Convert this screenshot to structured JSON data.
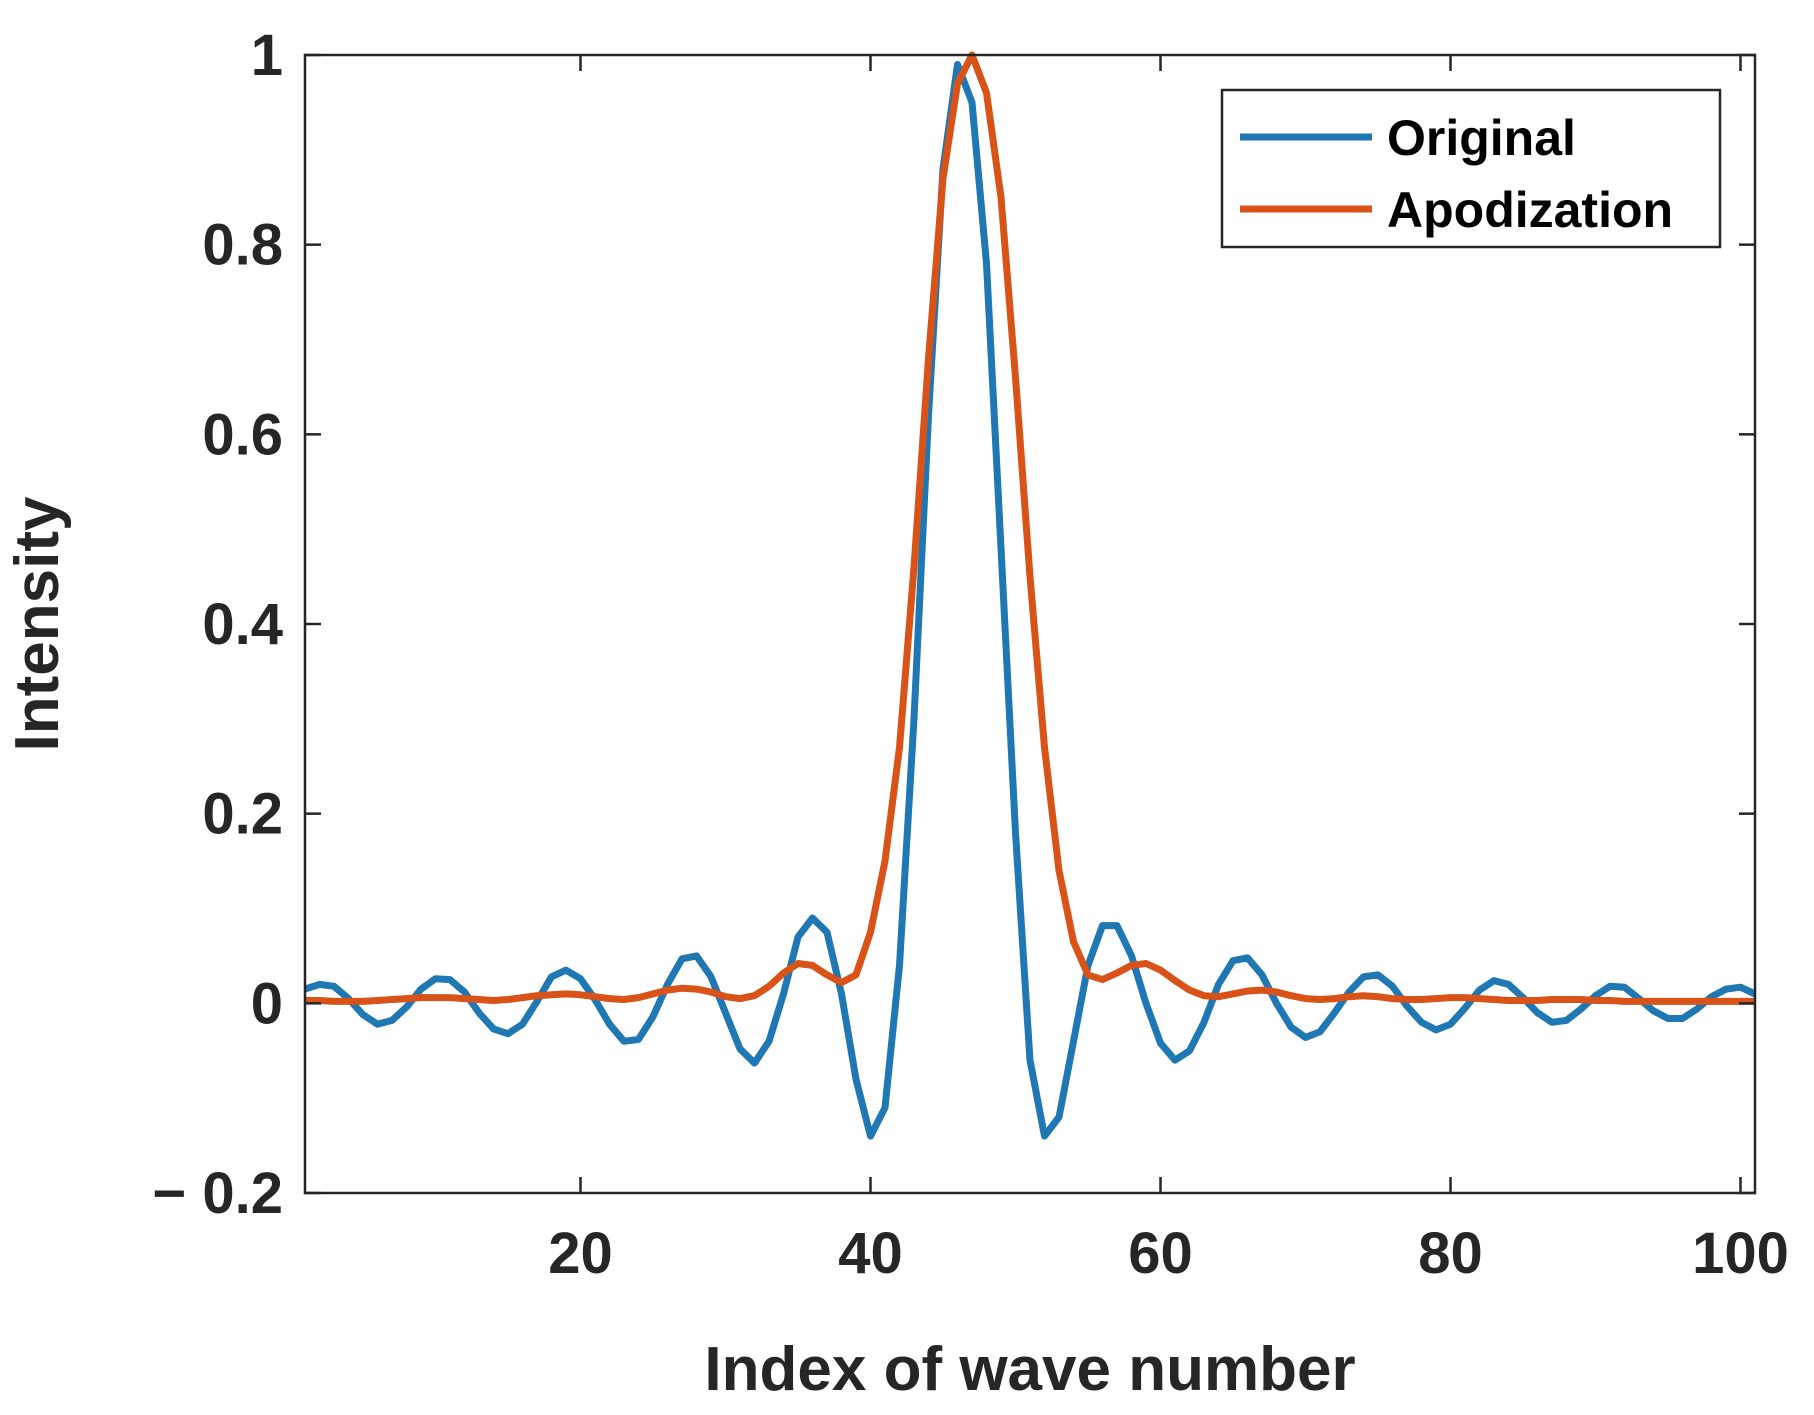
{
  "chart_data": {
    "type": "line",
    "title": "",
    "xlabel": "Index of wave number",
    "ylabel": "Intensity",
    "xlim": [
      1,
      101
    ],
    "ylim": [
      -0.2,
      1
    ],
    "xticks": [
      20,
      40,
      60,
      80,
      100
    ],
    "xtick_labels": [
      "20",
      "40",
      "60",
      "80",
      "100"
    ],
    "yticks": [
      -0.2,
      0,
      0.2,
      0.4,
      0.6,
      0.8,
      1
    ],
    "ytick_labels": [
      "− 0.2",
      "0",
      "0.2",
      "0.4",
      "0.6",
      "0.8",
      "1"
    ],
    "grid": false,
    "legend_position": "top-right",
    "x": [
      1,
      2,
      3,
      4,
      5,
      6,
      7,
      8,
      9,
      10,
      11,
      12,
      13,
      14,
      15,
      16,
      17,
      18,
      19,
      20,
      21,
      22,
      23,
      24,
      25,
      26,
      27,
      28,
      29,
      30,
      31,
      32,
      33,
      34,
      35,
      36,
      37,
      38,
      39,
      40,
      41,
      42,
      43,
      44,
      45,
      46,
      47,
      48,
      49,
      50,
      51,
      52,
      53,
      54,
      55,
      56,
      57,
      58,
      59,
      60,
      61,
      62,
      63,
      64,
      65,
      66,
      67,
      68,
      69,
      70,
      71,
      72,
      73,
      74,
      75,
      76,
      77,
      78,
      79,
      80,
      81,
      82,
      83,
      84,
      85,
      86,
      87,
      88,
      89,
      90,
      91,
      92,
      93,
      94,
      95,
      96,
      97,
      98,
      99,
      100,
      101
    ],
    "series": [
      {
        "name": "Original",
        "color": "#1f77b4",
        "values": [
          0.015,
          0.02,
          0.018,
          0.005,
          -0.012,
          -0.022,
          -0.018,
          -0.004,
          0.015,
          0.026,
          0.025,
          0.012,
          -0.01,
          -0.027,
          -0.032,
          -0.022,
          0.002,
          0.028,
          0.035,
          0.026,
          0.004,
          -0.022,
          -0.04,
          -0.038,
          -0.014,
          0.02,
          0.047,
          0.05,
          0.028,
          -0.01,
          -0.048,
          -0.063,
          -0.04,
          0.01,
          0.07,
          0.09,
          0.075,
          0.01,
          -0.08,
          -0.14,
          -0.11,
          0.04,
          0.3,
          0.62,
          0.88,
          0.99,
          0.95,
          0.78,
          0.48,
          0.18,
          -0.06,
          -0.14,
          -0.12,
          -0.04,
          0.04,
          0.082,
          0.082,
          0.05,
          0.0,
          -0.042,
          -0.06,
          -0.05,
          -0.02,
          0.02,
          0.045,
          0.048,
          0.03,
          0.0,
          -0.025,
          -0.036,
          -0.03,
          -0.01,
          0.012,
          0.028,
          0.03,
          0.018,
          -0.003,
          -0.02,
          -0.028,
          -0.022,
          -0.005,
          0.014,
          0.024,
          0.02,
          0.006,
          -0.01,
          -0.02,
          -0.018,
          -0.006,
          0.008,
          0.018,
          0.017,
          0.005,
          -0.008,
          -0.016,
          -0.016,
          -0.006,
          0.007,
          0.015,
          0.017,
          0.01
        ]
      },
      {
        "name": "Apodization",
        "color": "#d95319",
        "values": [
          0.003,
          0.003,
          0.002,
          0.002,
          0.002,
          0.003,
          0.004,
          0.005,
          0.006,
          0.006,
          0.006,
          0.005,
          0.004,
          0.003,
          0.004,
          0.006,
          0.008,
          0.009,
          0.01,
          0.009,
          0.007,
          0.005,
          0.004,
          0.006,
          0.01,
          0.014,
          0.016,
          0.015,
          0.012,
          0.007,
          0.005,
          0.008,
          0.018,
          0.032,
          0.042,
          0.04,
          0.03,
          0.022,
          0.03,
          0.075,
          0.15,
          0.27,
          0.46,
          0.68,
          0.87,
          0.97,
          1.0,
          0.96,
          0.85,
          0.66,
          0.45,
          0.27,
          0.14,
          0.065,
          0.03,
          0.025,
          0.032,
          0.04,
          0.042,
          0.035,
          0.024,
          0.014,
          0.008,
          0.007,
          0.01,
          0.013,
          0.014,
          0.012,
          0.008,
          0.005,
          0.004,
          0.005,
          0.007,
          0.008,
          0.007,
          0.005,
          0.004,
          0.004,
          0.005,
          0.006,
          0.006,
          0.005,
          0.004,
          0.003,
          0.003,
          0.003,
          0.004,
          0.004,
          0.004,
          0.003,
          0.003,
          0.002,
          0.002,
          0.002,
          0.002,
          0.002,
          0.002,
          0.002,
          0.002,
          0.002,
          0.002
        ]
      }
    ]
  }
}
